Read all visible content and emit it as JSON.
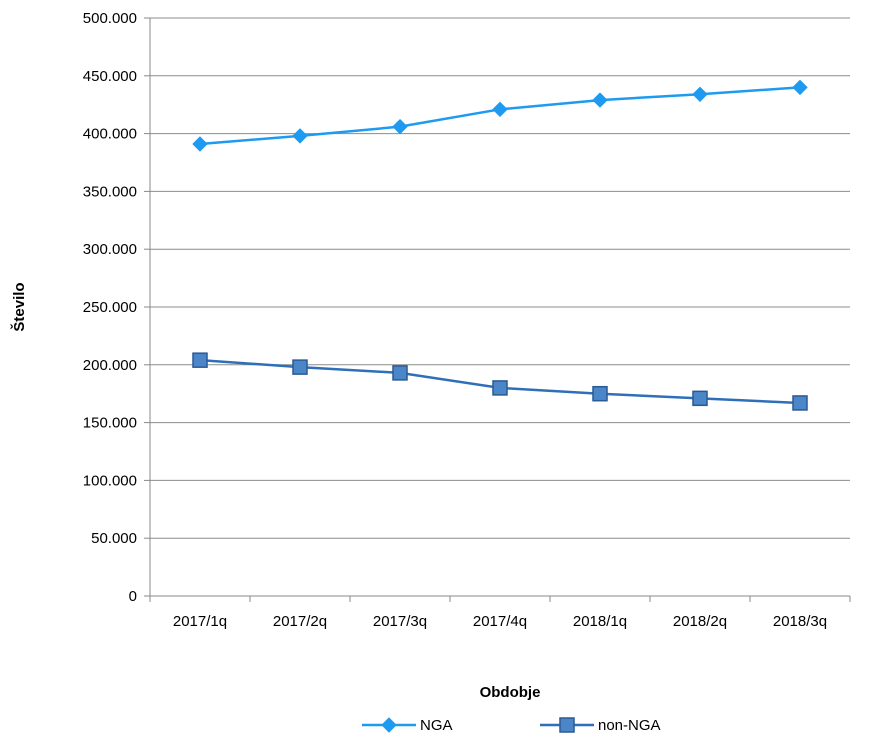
{
  "chart_data": {
    "type": "line",
    "categories": [
      "2017/1q",
      "2017/2q",
      "2017/3q",
      "2017/4q",
      "2018/1q",
      "2018/2q",
      "2018/3q"
    ],
    "series": [
      {
        "name": "NGA",
        "values": [
          391000,
          398000,
          406000,
          421000,
          429000,
          434000,
          440000
        ],
        "color": "#1e9bf0",
        "marker": "diamond"
      },
      {
        "name": "non-NGA",
        "values": [
          204000,
          198000,
          193000,
          180000,
          175000,
          171000,
          167000
        ],
        "color": "#2e6fb8",
        "marker": "square"
      }
    ],
    "xlabel": "Obdobje",
    "ylabel": "Število",
    "ylim": [
      0,
      500000
    ],
    "yticks": [
      "0",
      "50.000",
      "100.000",
      "150.000",
      "200.000",
      "250.000",
      "300.000",
      "350.000",
      "400.000",
      "450.000",
      "500.000"
    ],
    "ytick_values": [
      0,
      50000,
      100000,
      150000,
      200000,
      250000,
      300000,
      350000,
      400000,
      450000,
      500000
    ],
    "grid": true,
    "legend": "bottom"
  }
}
